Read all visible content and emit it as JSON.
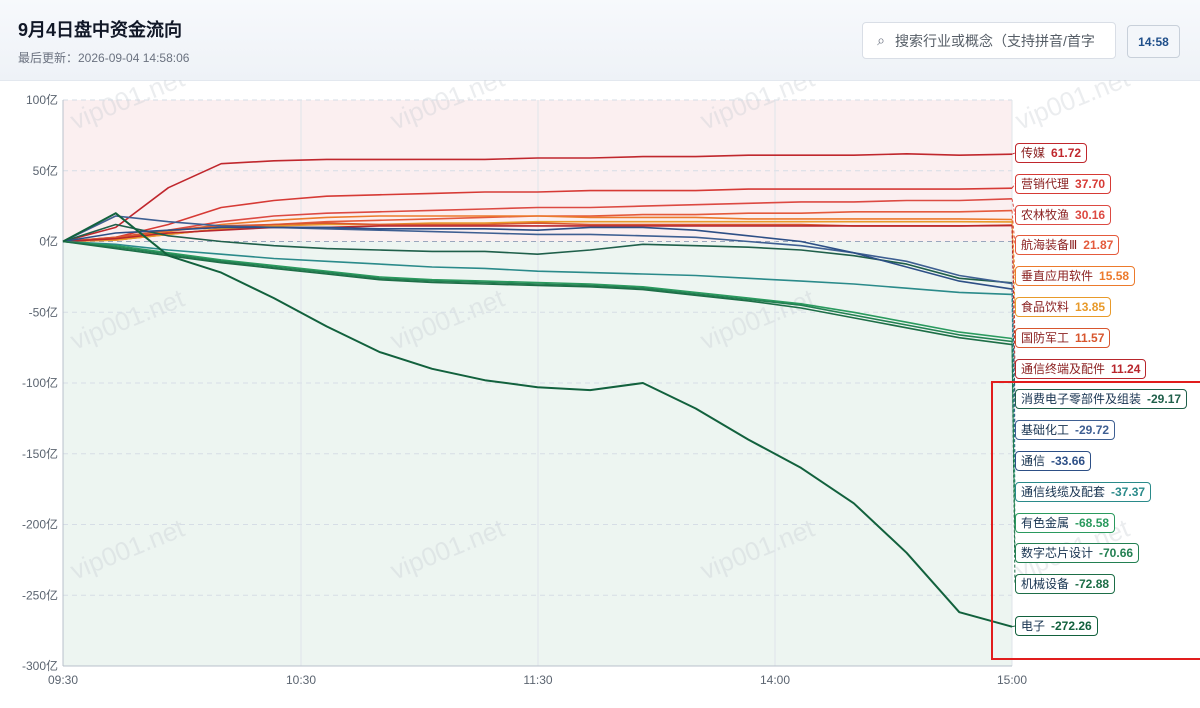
{
  "header": {
    "title": "9月4日盘中资金流向",
    "last_updated": "最后更新：2026-09-04 14:58:06",
    "search_placeholder": "搜索行业或概念（支持拼音/首字母）",
    "time_button": "14:58"
  },
  "watermark": "vip001.net",
  "colors": {
    "positive_zone": "#fbeff0",
    "negative_zone": "#edf5f1",
    "highlight_frame": "#e11d1d"
  },
  "chart_data": {
    "type": "line",
    "title": "9月4日盘中资金流向",
    "unit": "亿",
    "xlabel": "",
    "ylabel": "",
    "x_ticks": [
      "09:30",
      "10:30",
      "11:30",
      "14:00",
      "15:00"
    ],
    "y_ticks": [
      "100亿",
      "50亿",
      "0亿",
      "-50亿",
      "-100亿",
      "-150亿",
      "-200亿",
      "-250亿",
      "-300亿"
    ],
    "ylim": [
      -300,
      100
    ],
    "grid": true,
    "legend": "end-of-line labels, right",
    "series": [
      {
        "name": "传媒",
        "final": 61.72,
        "color": "#c0272d",
        "values": [
          0,
          10,
          38,
          55,
          57,
          58,
          58,
          58,
          58,
          59,
          59,
          60,
          60,
          61,
          61,
          61,
          62,
          61,
          61.72
        ]
      },
      {
        "name": "营销代理",
        "final": 37.7,
        "color": "#d63a35",
        "values": [
          0,
          3,
          12,
          24,
          29,
          32,
          33,
          34,
          35,
          35,
          36,
          36,
          36,
          37,
          37,
          37,
          37,
          37,
          37.7
        ]
      },
      {
        "name": "农林牧渔",
        "final": 30.16,
        "color": "#dc4a42",
        "values": [
          0,
          2,
          8,
          14,
          18,
          20,
          21,
          22,
          23,
          24,
          24,
          25,
          26,
          27,
          28,
          28,
          29,
          29,
          30.16
        ]
      },
      {
        "name": "航海装备Ⅲ",
        "final": 21.87,
        "color": "#e45a3c",
        "values": [
          0,
          1,
          5,
          9,
          12,
          14,
          15,
          16,
          17,
          18,
          18,
          19,
          19,
          20,
          20,
          21,
          21,
          21,
          21.87
        ]
      },
      {
        "name": "垂直应用软件",
        "final": 15.58,
        "color": "#ec7a2c",
        "values": [
          0,
          2,
          7,
          12,
          15,
          17,
          18,
          18,
          18,
          18,
          17,
          17,
          17,
          16,
          16,
          16,
          16,
          16,
          15.58
        ]
      },
      {
        "name": "食品饮料",
        "final": 13.85,
        "color": "#e89a2a",
        "values": [
          0,
          1,
          5,
          9,
          11,
          12,
          12,
          13,
          13,
          14,
          14,
          14,
          14,
          14,
          14,
          14,
          14,
          14,
          13.85
        ]
      },
      {
        "name": "国防军工",
        "final": 11.57,
        "color": "#d8562e",
        "values": [
          0,
          3,
          8,
          11,
          12,
          13,
          12,
          12,
          12,
          13,
          12,
          12,
          12,
          12,
          12,
          11,
          11,
          11,
          11.57
        ]
      },
      {
        "name": "通信终端及配件",
        "final": 11.24,
        "color": "#b8262c",
        "values": [
          0,
          2,
          6,
          8,
          10,
          10,
          11,
          11,
          11,
          11,
          11,
          11,
          11,
          11,
          11,
          11,
          11,
          11,
          11.24
        ]
      },
      {
        "name": "消费电子零部件及组装",
        "final": -29.17,
        "color": "#1f5f4a",
        "values": [
          0,
          12,
          4,
          0,
          -3,
          -5,
          -6,
          -7,
          -7,
          -9,
          -6,
          -2,
          -3,
          -4,
          -6,
          -10,
          -16,
          -26,
          -29.17
        ]
      },
      {
        "name": "基础化工",
        "final": -29.72,
        "color": "#3e5f92",
        "values": [
          0,
          18,
          14,
          11,
          10,
          9,
          8,
          7,
          6,
          5,
          5,
          4,
          3,
          0,
          -3,
          -8,
          -14,
          -24,
          -29.72
        ]
      },
      {
        "name": "通信",
        "final": -33.66,
        "color": "#2d4f86",
        "values": [
          0,
          6,
          8,
          10,
          10,
          10,
          9,
          9,
          9,
          8,
          10,
          10,
          8,
          4,
          0,
          -8,
          -18,
          -28,
          -33.66
        ]
      },
      {
        "name": "通信线缆及配套",
        "final": -37.37,
        "color": "#2a8a8a",
        "values": [
          0,
          -2,
          -6,
          -9,
          -12,
          -14,
          -16,
          -18,
          -19,
          -21,
          -22,
          -23,
          -24,
          -26,
          -28,
          -30,
          -33,
          -36,
          -37.37
        ]
      },
      {
        "name": "有色金属",
        "final": -68.58,
        "color": "#2a9a5e",
        "values": [
          0,
          -3,
          -8,
          -13,
          -17,
          -21,
          -25,
          -27,
          -28,
          -29,
          -30,
          -32,
          -36,
          -40,
          -44,
          -50,
          -57,
          -64,
          -68.58
        ]
      },
      {
        "name": "数字芯片设计",
        "final": -70.66,
        "color": "#238052",
        "values": [
          0,
          -4,
          -9,
          -14,
          -18,
          -22,
          -26,
          -28,
          -29,
          -30,
          -31,
          -33,
          -37,
          -41,
          -45,
          -52,
          -59,
          -66,
          -70.66
        ]
      },
      {
        "name": "机械设备",
        "final": -72.88,
        "color": "#1d6e47",
        "values": [
          0,
          -5,
          -10,
          -15,
          -19,
          -23,
          -27,
          -29,
          -30,
          -31,
          -32,
          -34,
          -38,
          -42,
          -47,
          -54,
          -61,
          -68,
          -72.88
        ]
      },
      {
        "name": "电子",
        "final": -272.26,
        "color": "#12613d",
        "values": [
          0,
          20,
          -10,
          -22,
          -40,
          -60,
          -78,
          -90,
          -98,
          -103,
          -105,
          -100,
          -118,
          -140,
          -160,
          -185,
          -220,
          -262,
          -272.26
        ]
      }
    ]
  }
}
